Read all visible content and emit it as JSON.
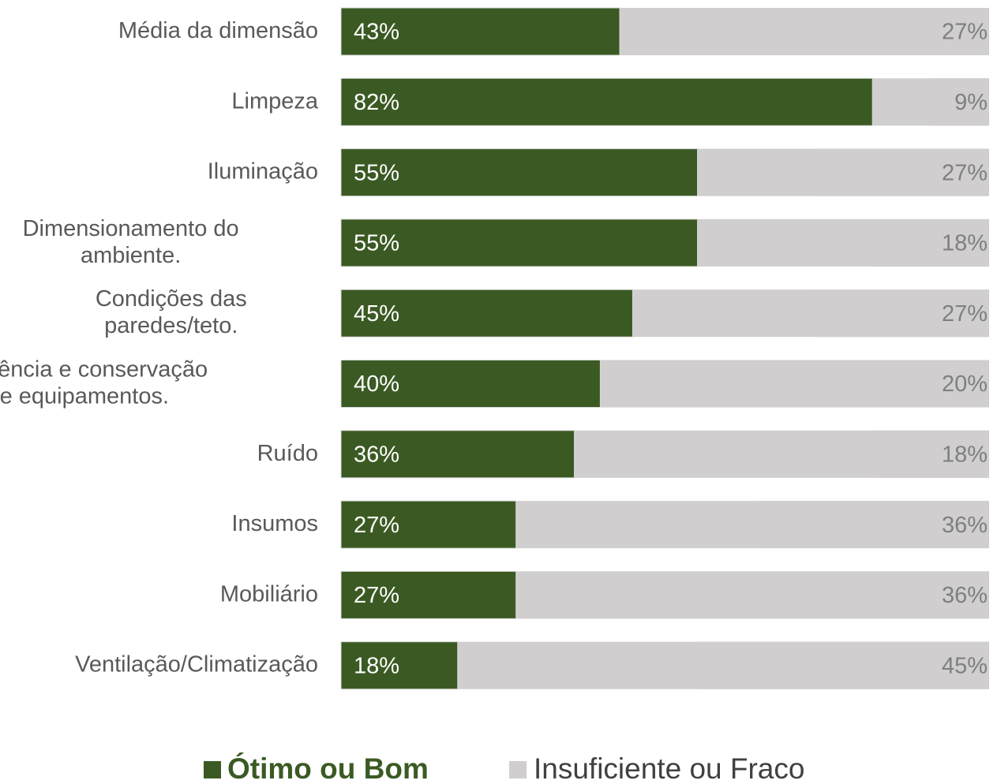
{
  "chart_data": {
    "type": "stacked-bar-horizontal",
    "categories": [
      "Média da dimensão",
      "Limpeza",
      "Iluminação",
      "Dimensionamento do\nambiente.",
      "Condições das\nparedes/teto.",
      "Existência e conservação\nde equipamentos.",
      "Ruído",
      "Insumos",
      "Mobiliário",
      "Ventilação/Climatização"
    ],
    "xlim": [
      0,
      100
    ],
    "series": [
      {
        "name": "Ótimo ou Bom",
        "color": "#3b5a23",
        "values": [
          43,
          82,
          55,
          55,
          45,
          40,
          36,
          27,
          27,
          18
        ],
        "value_labels": [
          "43%",
          "82%",
          "55%",
          "55%",
          "45%",
          "40%",
          "36%",
          "27%",
          "27%",
          "18%"
        ]
      },
      {
        "name": "Insuficiente ou Fraco",
        "color": "#d0cece",
        "values": [
          27,
          9,
          27,
          18,
          27,
          20,
          18,
          36,
          36,
          45
        ],
        "value_labels": [
          "27%",
          "9%",
          "27%",
          "18%",
          "27%",
          "20%",
          "18%",
          "36%",
          "36%",
          "45%"
        ]
      }
    ],
    "legend": "bottom"
  }
}
